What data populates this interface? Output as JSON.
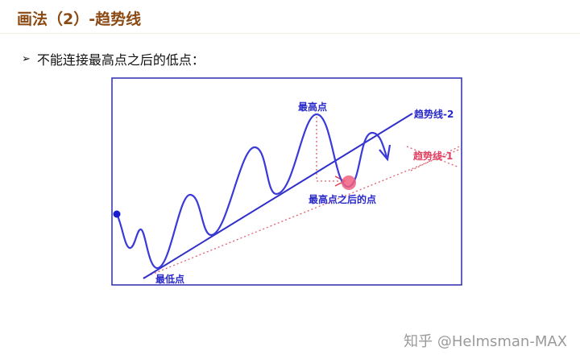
{
  "title": "画法（2）-趋势线",
  "bullet": {
    "icon": "arrow-bullet-icon",
    "text": "不能连接最高点之后的低点："
  },
  "diagram": {
    "labels": {
      "highest_point": "最高点",
      "lowest_point": "最低点",
      "point_after_highest": "最高点之后的点",
      "trendline_2": "趋势线-2",
      "trendline_1": "趋势线-1"
    },
    "colors": {
      "curve": "#3a3ad8",
      "trendline_2": "#3030c8",
      "trendline_1": "#e06070",
      "frame": "#2a2ab0",
      "point": "#f06080"
    }
  },
  "watermark": "知乎 @Helmsman-MAX"
}
